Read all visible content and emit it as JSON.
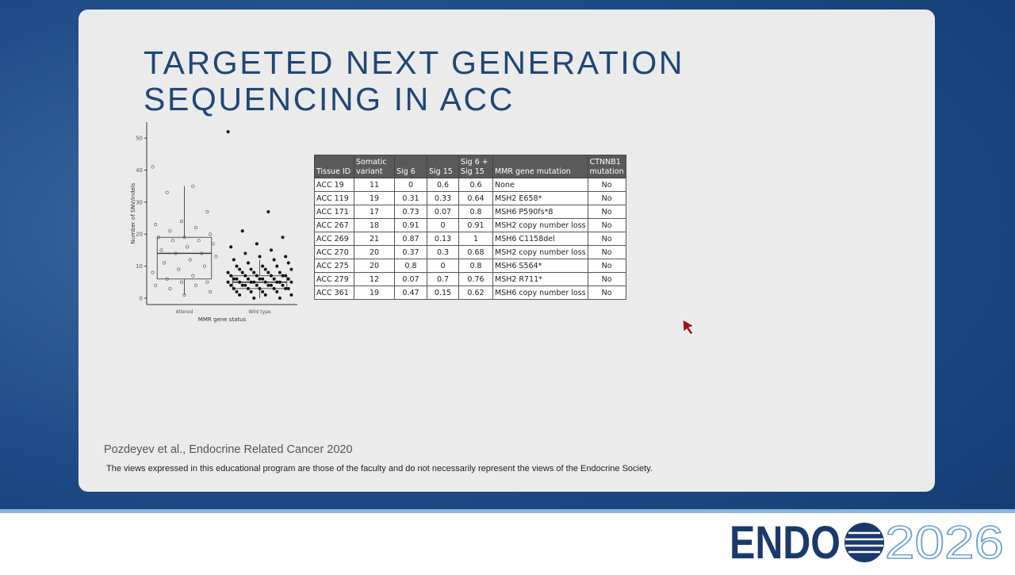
{
  "header": {
    "title": [
      "TARGETED NEXT GENERATION",
      "SEQUENCING IN ACC"
    ]
  },
  "plot": {
    "type": "box",
    "y_label": "Number of SNV/indels",
    "x_label": "MMR gene status",
    "categories": [
      "Altered",
      "Wild type"
    ],
    "ylim": [
      -2,
      55
    ],
    "yticks": [
      0,
      10,
      20,
      30,
      40,
      50
    ],
    "boxes": [
      {
        "whisker_low": 1,
        "q1": 6,
        "median": 14,
        "q3": 19,
        "whisker_high": 35
      },
      {
        "whisker_low": 0,
        "q1": 3,
        "median": 5,
        "q3": 7,
        "whisker_high": 12
      }
    ],
    "points": [
      [
        41,
        35,
        33,
        27,
        24,
        23,
        22,
        21,
        20,
        19,
        19,
        18,
        18,
        17,
        16,
        15,
        14,
        14,
        13,
        12,
        11,
        10,
        9,
        8,
        7,
        6,
        5,
        5,
        4,
        4,
        3,
        2,
        1
      ],
      [
        52,
        27,
        21,
        19,
        17,
        16,
        15,
        14,
        13,
        13,
        12,
        12,
        11,
        11,
        10,
        10,
        10,
        9,
        9,
        9,
        9,
        8,
        8,
        8,
        8,
        8,
        7,
        7,
        7,
        7,
        7,
        7,
        6,
        6,
        6,
        6,
        6,
        6,
        6,
        5,
        5,
        5,
        5,
        5,
        5,
        5,
        5,
        4,
        4,
        4,
        4,
        4,
        4,
        4,
        3,
        3,
        3,
        3,
        3,
        3,
        2,
        2,
        2,
        2,
        1,
        1,
        1,
        0,
        0
      ]
    ],
    "open_markers": [
      true,
      false
    ]
  },
  "table": {
    "columns": [
      "Tissue ID",
      "Somatic variant",
      "Sig 6",
      "Sig 15",
      "Sig 6 + Sig 15",
      "MMR gene mutation",
      "CTNNB1 mutation"
    ],
    "rows": [
      [
        "ACC 19",
        "11",
        "0",
        "0.6",
        "0.6",
        "None",
        "No"
      ],
      [
        "ACC 119",
        "19",
        "0.31",
        "0.33",
        "0.64",
        "MSH2 E658*",
        "No"
      ],
      [
        "ACC 171",
        "17",
        "0.73",
        "0.07",
        "0.8",
        "MSH6 P590fs*8",
        "No"
      ],
      [
        "ACC 267",
        "18",
        "0.91",
        "0",
        "0.91",
        "MSH2 copy number loss",
        "No"
      ],
      [
        "ACC 269",
        "21",
        "0.87",
        "0.13",
        "1",
        "MSH6 C1158del",
        "No"
      ],
      [
        "ACC 270",
        "20",
        "0.37",
        "0.3",
        "0.68",
        "MSH2 copy number loss",
        "No"
      ],
      [
        "ACC 275",
        "20",
        "0.8",
        "0",
        "0.8",
        "MSH6 S564*",
        "No"
      ],
      [
        "ACC 279",
        "12",
        "0.07",
        "0.7",
        "0.76",
        "MSH2 R711*",
        "No"
      ],
      [
        "ACC 361",
        "19",
        "0.47",
        "0.15",
        "0.62",
        "MSH6 copy number loss",
        "No"
      ]
    ]
  },
  "citation": "Pozdeyev et al., Endocrine Related Cancer 2020",
  "disclaimer": "The views expressed in this educational program are those of the faculty and do not necessarily represent the views of the Endocrine Society.",
  "logo": {
    "name": "ENDO",
    "year": "2026"
  }
}
